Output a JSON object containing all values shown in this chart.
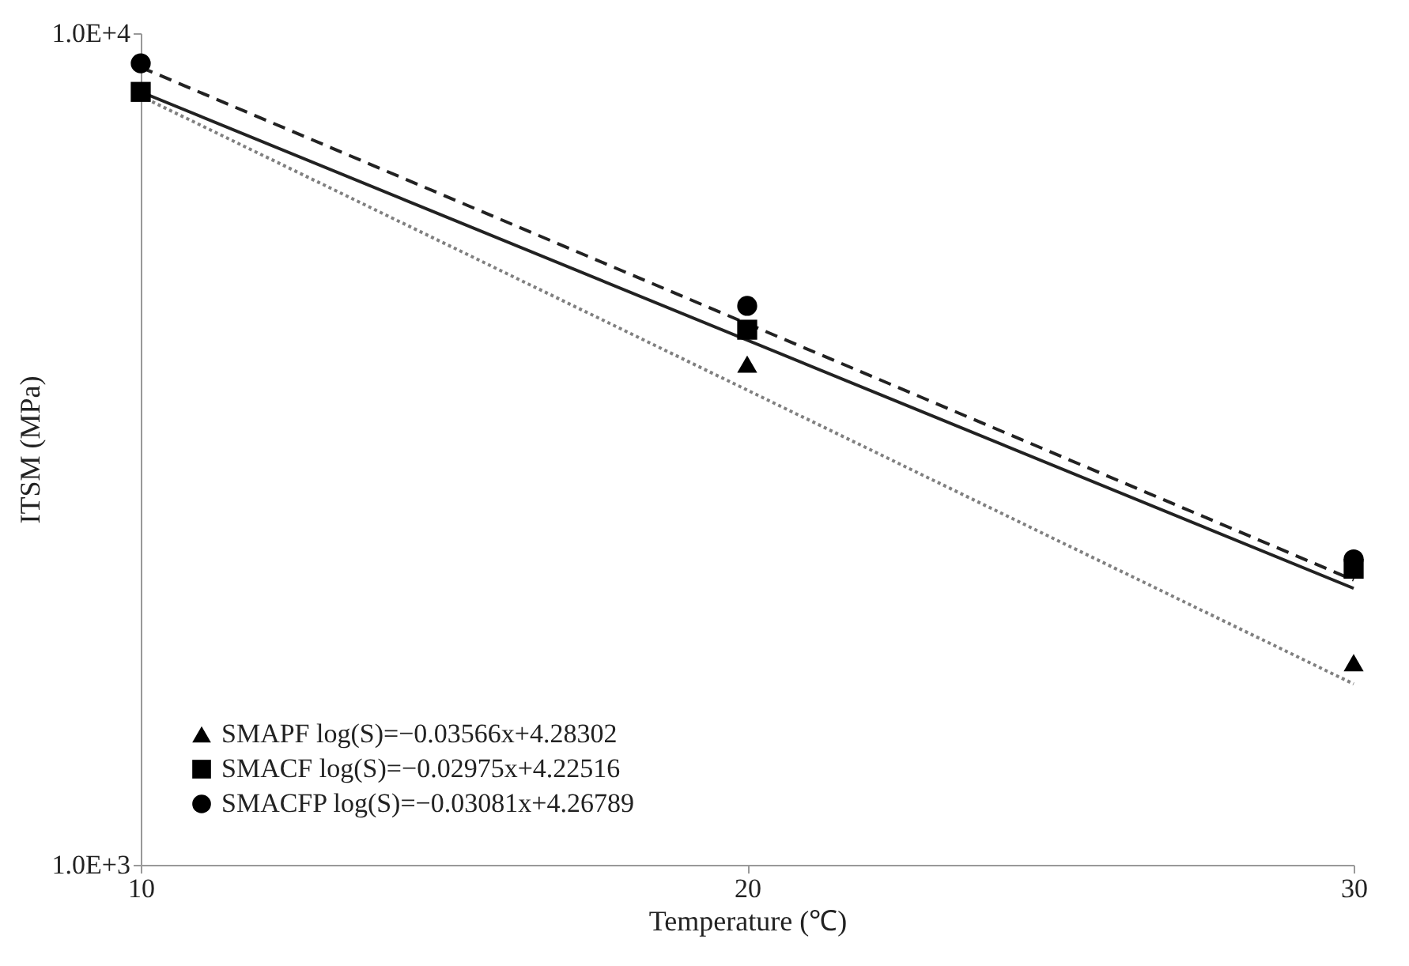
{
  "chart_data": {
    "type": "scatter",
    "xlabel": "Temperature (℃)",
    "ylabel": "ITSM (MPa)",
    "xlim": [
      10,
      30
    ],
    "xticks": [
      10,
      20,
      30
    ],
    "ylim": [
      1000,
      10000
    ],
    "yticks": [
      {
        "value": 1000,
        "label": "1.0E+3"
      },
      {
        "value": 10000,
        "label": "1.0E+4"
      }
    ],
    "log": "y",
    "grid": false,
    "legend": "bottom left",
    "series": [
      {
        "name": "SMAPF log(S)=−0.03566x+4.28302",
        "type": "scatter",
        "marker": "triangle",
        "color": "#000000",
        "x": [
          20,
          30
        ],
        "values": [
          4000,
          1750
        ]
      },
      {
        "name": "SMACF log(S)=−0.02975x+4.22516",
        "type": "scatter",
        "marker": "square",
        "color": "#000000",
        "x": [
          10,
          20,
          30
        ],
        "values": [
          8500,
          4400,
          2270
        ]
      },
      {
        "name": "SMACFP log(S)=−0.03081x+4.26789",
        "type": "scatter",
        "marker": "circle",
        "color": "#000000",
        "x": [
          10,
          20,
          30
        ],
        "values": [
          9200,
          4700,
          2330
        ]
      },
      {
        "type": "line",
        "line_style": "dotted",
        "color": "#808080",
        "x": [
          10,
          30
        ],
        "values": [
          8400,
          1650
        ]
      },
      {
        "type": "line",
        "line_style": "solid",
        "color": "#222222",
        "x": [
          10,
          30
        ],
        "values": [
          8500,
          2150
        ]
      },
      {
        "type": "line",
        "line_style": "dashed",
        "color": "#222222",
        "x": [
          10,
          30
        ],
        "values": [
          9100,
          2200
        ]
      }
    ]
  }
}
